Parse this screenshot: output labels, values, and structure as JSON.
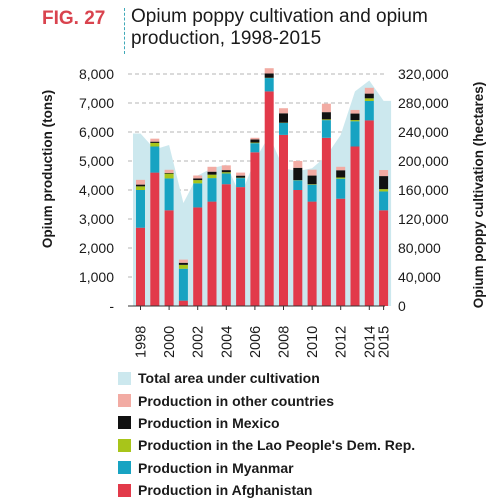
{
  "figure": {
    "number": "FIG. 27",
    "title_line1": "Opium poppy cultivation and opium",
    "title_line2": "production, 1998-2015"
  },
  "chart_data": {
    "type": "bar",
    "categories": [
      "1998",
      "1999",
      "2000",
      "2001",
      "2002",
      "2003",
      "2004",
      "2005",
      "2006",
      "2007",
      "2008",
      "2009",
      "2010",
      "2011",
      "2012",
      "2013",
      "2014",
      "2015"
    ],
    "tick_labels": [
      "1998",
      "2000",
      "2002",
      "2004",
      "2006",
      "2008",
      "2010",
      "2012",
      "2014",
      "2015"
    ],
    "ylabel_left": "Opium production (tons)",
    "ylabel_right": "Opium poppy cultivation (hectares)",
    "ylim_left": [
      0,
      8000
    ],
    "ylim_right": [
      0,
      320000
    ],
    "left_ticks": [
      {
        "value": 0,
        "label": "-"
      },
      {
        "value": 1000,
        "label": "1,000"
      },
      {
        "value": 2000,
        "label": "2,000"
      },
      {
        "value": 3000,
        "label": "3,000"
      },
      {
        "value": 4000,
        "label": "4,000"
      },
      {
        "value": 5000,
        "label": "5,000"
      },
      {
        "value": 6000,
        "label": "6,000"
      },
      {
        "value": 7000,
        "label": "7,000"
      },
      {
        "value": 8000,
        "label": "8,000"
      }
    ],
    "right_ticks": [
      {
        "value": 0,
        "label": "0"
      },
      {
        "value": 40000,
        "label": "40,000"
      },
      {
        "value": 80000,
        "label": "80,000"
      },
      {
        "value": 120000,
        "label": "120,000"
      },
      {
        "value": 160000,
        "label": "160,000"
      },
      {
        "value": 200000,
        "label": "200,000"
      },
      {
        "value": 240000,
        "label": "240,000"
      },
      {
        "value": 280000,
        "label": "280,000"
      },
      {
        "value": 320000,
        "label": "320,000"
      }
    ],
    "grid": "horizontal dashed",
    "legend_position": "bottom",
    "area": {
      "name": "Total area under cultivation",
      "axis": "right",
      "color": "#cce8ee",
      "values": [
        238000,
        216000,
        222000,
        142000,
        180000,
        190000,
        195000,
        152000,
        201000,
        235000,
        190000,
        186000,
        190000,
        207000,
        236000,
        296000,
        311000,
        283000
      ]
    },
    "series": [
      {
        "name": "Production in Afghanistan",
        "color": "#e23a4a",
        "values": [
          2700,
          4600,
          3300,
          185,
          3400,
          3600,
          4200,
          4100,
          5300,
          7400,
          5900,
          4000,
          3600,
          5800,
          3700,
          5500,
          6400,
          3300
        ]
      },
      {
        "name": "Production in Myanmar",
        "color": "#17a3c2",
        "values": [
          1300,
          900,
          1100,
          1100,
          830,
          810,
          370,
          310,
          315,
          460,
          410,
          330,
          580,
          610,
          690,
          870,
          670,
          650
        ]
      },
      {
        "name": "Production in the Lao People's Dem. Rep.",
        "color": "#a8c51a",
        "values": [
          126,
          124,
          167,
          134,
          112,
          120,
          43,
          14,
          20,
          9,
          10,
          11,
          18,
          25,
          41,
          41,
          92,
          80
        ]
      },
      {
        "name": "Production in Mexico",
        "color": "#111111",
        "values": [
          60,
          43,
          21,
          71,
          58,
          101,
          73,
          71,
          108,
          149,
          325,
          425,
          300,
          250,
          250,
          225,
          162,
          450
        ]
      },
      {
        "name": "Production in other countries",
        "color": "#f2aba3",
        "values": [
          164,
          103,
          109,
          110,
          100,
          169,
          164,
          105,
          57,
          182,
          175,
          234,
          202,
          290,
          119,
          125,
          200,
          210
        ]
      }
    ]
  }
}
